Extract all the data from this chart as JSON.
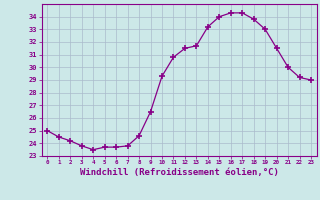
{
  "x": [
    0,
    1,
    2,
    3,
    4,
    5,
    6,
    7,
    8,
    9,
    10,
    11,
    12,
    13,
    14,
    15,
    16,
    17,
    18,
    19,
    20,
    21,
    22,
    23
  ],
  "y": [
    25.0,
    24.5,
    24.2,
    23.8,
    23.5,
    23.7,
    23.7,
    23.8,
    24.6,
    26.5,
    29.3,
    30.8,
    31.5,
    31.7,
    33.2,
    34.0,
    34.3,
    34.3,
    33.8,
    33.0,
    31.5,
    30.0,
    29.2,
    29.0
  ],
  "line_color": "#880088",
  "marker": "+",
  "marker_size": 4,
  "marker_lw": 1.2,
  "xlabel": "Windchill (Refroidissement éolien,°C)",
  "xlabel_fontsize": 6.5,
  "xlim": [
    -0.5,
    23.5
  ],
  "ylim": [
    23,
    35
  ],
  "yticks": [
    23,
    24,
    25,
    26,
    27,
    28,
    29,
    30,
    31,
    32,
    33,
    34
  ],
  "xticks": [
    0,
    1,
    2,
    3,
    4,
    5,
    6,
    7,
    8,
    9,
    10,
    11,
    12,
    13,
    14,
    15,
    16,
    17,
    18,
    19,
    20,
    21,
    22,
    23
  ],
  "bg_color": "#cce8e8",
  "grid_color": "#aabbcc",
  "tick_color": "#880088",
  "tick_label_color": "#880088",
  "label_color": "#880088"
}
